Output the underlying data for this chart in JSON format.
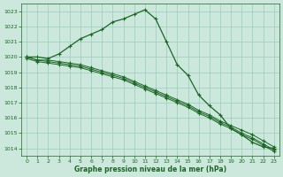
{
  "bg_color": "#cce8dd",
  "grid_color": "#99ccbb",
  "line_color": "#1a6622",
  "tick_color": "#1a6622",
  "xlabel": "Graphe pression niveau de la mer (hPa)",
  "xlim": [
    -0.5,
    23.5
  ],
  "ylim": [
    1013.5,
    1023.5
  ],
  "yticks": [
    1014,
    1015,
    1016,
    1017,
    1018,
    1019,
    1020,
    1021,
    1022,
    1023
  ],
  "xticks": [
    0,
    1,
    2,
    3,
    4,
    5,
    6,
    7,
    8,
    9,
    10,
    11,
    12,
    13,
    14,
    15,
    16,
    17,
    18,
    19,
    20,
    21,
    22,
    23
  ],
  "series": [
    {
      "x": [
        0,
        1,
        2,
        3,
        4,
        5,
        6,
        7,
        8,
        9,
        10,
        11,
        12,
        13,
        14,
        15,
        16,
        17,
        18,
        19,
        20,
        21,
        22,
        23
      ],
      "y": [
        1020.0,
        1020.0,
        1019.9,
        1020.2,
        1020.7,
        1021.2,
        1021.5,
        1021.8,
        1022.3,
        1022.5,
        1022.8,
        1023.1,
        1022.5,
        1021.0,
        1019.5,
        1018.8,
        1017.5,
        1016.8,
        1016.2,
        1015.3,
        1014.9,
        1014.4,
        1014.1,
        1014.0
      ]
    },
    {
      "x": [
        0,
        1,
        2,
        3,
        4,
        5,
        6,
        7,
        8,
        9,
        10,
        11,
        12,
        13,
        14,
        15,
        16,
        17,
        18,
        19,
        20,
        21,
        22,
        23
      ],
      "y": [
        1020.0,
        1019.8,
        1019.8,
        1019.7,
        1019.6,
        1019.5,
        1019.3,
        1019.1,
        1018.9,
        1018.7,
        1018.4,
        1018.1,
        1017.8,
        1017.5,
        1017.2,
        1016.9,
        1016.5,
        1016.2,
        1015.8,
        1015.5,
        1015.2,
        1014.9,
        1014.5,
        1014.1
      ]
    },
    {
      "x": [
        0,
        1,
        2,
        3,
        4,
        5,
        6,
        7,
        8,
        9,
        10,
        11,
        12,
        13,
        14,
        15,
        16,
        17,
        18,
        19,
        20,
        21,
        22,
        23
      ],
      "y": [
        1020.0,
        1019.8,
        1019.7,
        1019.6,
        1019.5,
        1019.4,
        1019.2,
        1019.0,
        1018.8,
        1018.6,
        1018.3,
        1018.0,
        1017.7,
        1017.4,
        1017.1,
        1016.8,
        1016.4,
        1016.1,
        1015.7,
        1015.4,
        1015.0,
        1014.7,
        1014.3,
        1013.9
      ]
    },
    {
      "x": [
        0,
        1,
        2,
        3,
        4,
        5,
        6,
        7,
        8,
        9,
        10,
        11,
        12,
        13,
        14,
        15,
        16,
        17,
        18,
        19,
        20,
        21,
        22,
        23
      ],
      "y": [
        1019.9,
        1019.7,
        1019.6,
        1019.5,
        1019.4,
        1019.3,
        1019.1,
        1018.9,
        1018.7,
        1018.5,
        1018.2,
        1017.9,
        1017.6,
        1017.3,
        1017.0,
        1016.7,
        1016.3,
        1016.0,
        1015.6,
        1015.3,
        1014.9,
        1014.6,
        1014.2,
        1013.8
      ]
    }
  ]
}
